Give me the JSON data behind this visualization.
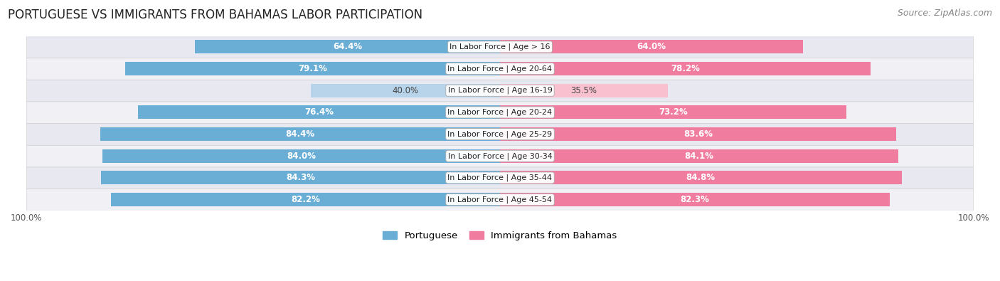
{
  "title": "PORTUGUESE VS IMMIGRANTS FROM BAHAMAS LABOR PARTICIPATION",
  "source": "Source: ZipAtlas.com",
  "categories": [
    "In Labor Force | Age > 16",
    "In Labor Force | Age 20-64",
    "In Labor Force | Age 16-19",
    "In Labor Force | Age 20-24",
    "In Labor Force | Age 25-29",
    "In Labor Force | Age 30-34",
    "In Labor Force | Age 35-44",
    "In Labor Force | Age 45-54"
  ],
  "portuguese_values": [
    64.4,
    79.1,
    40.0,
    76.4,
    84.4,
    84.0,
    84.3,
    82.2
  ],
  "bahamas_values": [
    64.0,
    78.2,
    35.5,
    73.2,
    83.6,
    84.1,
    84.8,
    82.3
  ],
  "portuguese_color": "#6aaed6",
  "bahamas_color": "#f07ca0",
  "portuguese_light_color": "#b8d4ea",
  "bahamas_light_color": "#f9c0d0",
  "row_bg_color_odd": "#f0f0f5",
  "row_bg_color_even": "#e8e8f0",
  "label_color_white": "#ffffff",
  "label_color_dark": "#444444",
  "max_value": 100.0,
  "bar_height": 0.62,
  "title_fontsize": 12,
  "source_fontsize": 9,
  "bar_label_fontsize": 8.5,
  "category_fontsize": 8,
  "legend_fontsize": 9.5,
  "axis_label_fontsize": 8.5,
  "background_color": "#ffffff"
}
